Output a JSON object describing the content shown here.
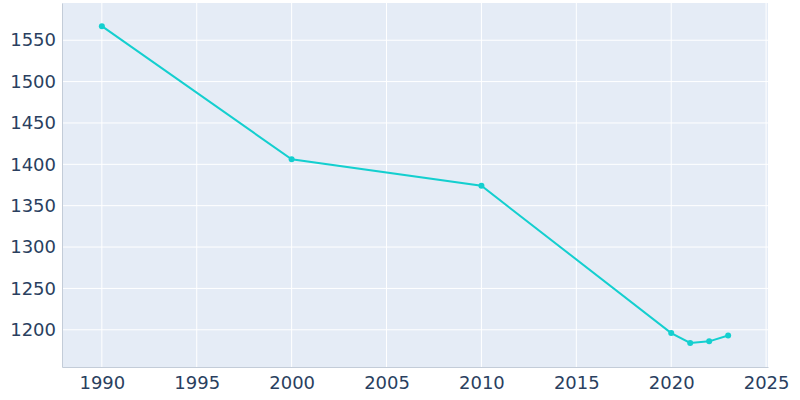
{
  "chart_data": {
    "type": "line",
    "x": [
      1990,
      2000,
      2010,
      2020,
      2021,
      2022,
      2023
    ],
    "values": [
      1567,
      1406,
      1374,
      1196,
      1184,
      1186,
      1193
    ],
    "color": "#14cfcf",
    "marker": "circle",
    "xlim": [
      1987.9,
      2025.1
    ],
    "xticks": [
      1990,
      1995,
      2000,
      2005,
      2010,
      2015,
      2020,
      2025
    ],
    "ylim": [
      1155,
      1595
    ],
    "yticks": [
      1200,
      1250,
      1300,
      1350,
      1400,
      1450,
      1500,
      1550
    ],
    "grid": true
  }
}
